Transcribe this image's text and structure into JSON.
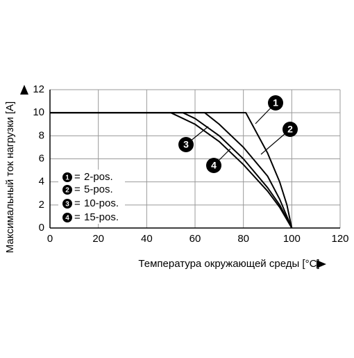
{
  "chart_data": {
    "type": "line",
    "x_label": "Температура окружающей среды [°C]",
    "y_label": "Максимальный ток нагрузки [A]",
    "xlim": [
      0,
      120
    ],
    "xticks": [
      0,
      20,
      40,
      60,
      80,
      100,
      120
    ],
    "ylim": [
      0,
      12
    ],
    "yticks": [
      0,
      2,
      4,
      6,
      8,
      10,
      12
    ],
    "grid": true,
    "legend_sep": "=",
    "series": [
      {
        "name": "2-pos.",
        "marker": "1",
        "color": "#000000",
        "x": [
          0,
          81,
          90,
          95,
          98,
          100
        ],
        "values": [
          10,
          10,
          6.5,
          4,
          2,
          0
        ]
      },
      {
        "name": "5-pos.",
        "marker": "2",
        "color": "#000000",
        "x": [
          0,
          64,
          70,
          80,
          90,
          95,
          100
        ],
        "values": [
          10,
          10,
          9,
          7,
          4.5,
          2.5,
          0
        ]
      },
      {
        "name": "10-pos.",
        "marker": "3",
        "color": "#000000",
        "x": [
          0,
          55,
          60,
          70,
          80,
          90,
          95,
          100
        ],
        "values": [
          10,
          10,
          9.5,
          8,
          6,
          3.5,
          2,
          0
        ]
      },
      {
        "name": "15-pos.",
        "marker": "4",
        "color": "#000000",
        "x": [
          0,
          50,
          60,
          70,
          80,
          90,
          95,
          100
        ],
        "values": [
          10,
          10,
          9,
          7.5,
          5.5,
          3.2,
          1.8,
          0
        ]
      }
    ]
  }
}
